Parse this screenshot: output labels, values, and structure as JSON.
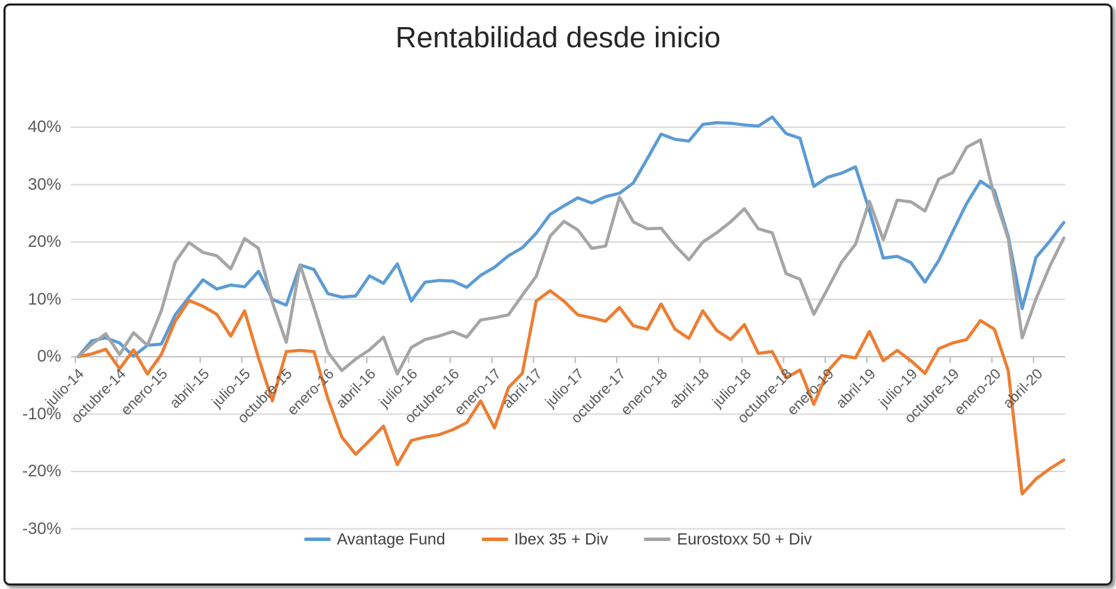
{
  "title": "Rentabilidad desde inicio",
  "colors": {
    "avantage": "#5B9BD5",
    "ibex": "#ED7D31",
    "eurostoxx": "#A5A5A5",
    "gridline": "#D9D9D9",
    "axis_line": "#C6C6C6",
    "tick_mark": "#BFBFBF",
    "axis_text": "#595959",
    "title_text": "#262626"
  },
  "y_axis": {
    "tick_labels": [
      "40%",
      "30%",
      "20%",
      "10%",
      "0%",
      "-10%",
      "-20%",
      "-30%"
    ],
    "tick_values": [
      40,
      30,
      20,
      10,
      0,
      -10,
      -20,
      -30
    ]
  },
  "x_axis": {
    "tick_labels": [
      "julio-14",
      "octubre-14",
      "enero-15",
      "abril-15",
      "julio-15",
      "octubre-15",
      "enero-16",
      "abril-16",
      "julio-16",
      "octubre-16",
      "enero-17",
      "abril-17",
      "julio-17",
      "octubre-17",
      "enero-18",
      "abril-18",
      "julio-18",
      "octubre-18",
      "enero-19",
      "abril-19",
      "julio-19",
      "octubre-19",
      "enero-20",
      "abril-20"
    ]
  },
  "legend": [
    {
      "label": "Avantage Fund",
      "color": "#5B9BD5"
    },
    {
      "label": "Ibex 35 + Div",
      "color": "#ED7D31"
    },
    {
      "label": "Eurostoxx 50 + Div",
      "color": "#A5A5A5"
    }
  ],
  "chart_data": {
    "type": "line",
    "title": "Rentabilidad desde inicio",
    "xlabel": "",
    "ylabel": "",
    "ylim": [
      -33,
      46
    ],
    "grid": "horizontal",
    "legend_position": "bottom",
    "x_unit": "month",
    "x": [
      "2014-07",
      "2014-08",
      "2014-09",
      "2014-10",
      "2014-11",
      "2014-12",
      "2015-01",
      "2015-02",
      "2015-03",
      "2015-04",
      "2015-05",
      "2015-06",
      "2015-07",
      "2015-08",
      "2015-09",
      "2015-10",
      "2015-11",
      "2015-12",
      "2016-01",
      "2016-02",
      "2016-03",
      "2016-04",
      "2016-05",
      "2016-06",
      "2016-07",
      "2016-08",
      "2016-09",
      "2016-10",
      "2016-11",
      "2016-12",
      "2017-01",
      "2017-02",
      "2017-03",
      "2017-04",
      "2017-05",
      "2017-06",
      "2017-07",
      "2017-08",
      "2017-09",
      "2017-10",
      "2017-11",
      "2017-12",
      "2018-01",
      "2018-02",
      "2018-03",
      "2018-04",
      "2018-05",
      "2018-06",
      "2018-07",
      "2018-08",
      "2018-09",
      "2018-10",
      "2018-11",
      "2018-12",
      "2019-01",
      "2019-02",
      "2019-03",
      "2019-04",
      "2019-05",
      "2019-06",
      "2019-07",
      "2019-08",
      "2019-09",
      "2019-10",
      "2019-11",
      "2019-12",
      "2020-01",
      "2020-02",
      "2020-03",
      "2020-04",
      "2020-05",
      "2020-06"
    ],
    "series": [
      {
        "name": "Avantage Fund",
        "color": "#5B9BD5",
        "values": [
          0.0,
          2.8,
          3.3,
          2.4,
          0.1,
          2.0,
          2.2,
          7.3,
          10.4,
          13.4,
          11.8,
          12.5,
          12.2,
          14.9,
          10.0,
          9.0,
          16.0,
          15.2,
          11.0,
          10.4,
          10.6,
          14.1,
          12.8,
          16.2,
          9.7,
          13.0,
          13.3,
          13.2,
          12.1,
          14.2,
          15.6,
          17.6,
          19.0,
          21.5,
          24.8,
          26.3,
          27.7,
          26.8,
          27.9,
          28.5,
          30.3,
          34.5,
          38.8,
          37.9,
          37.6,
          40.5,
          40.8,
          40.7,
          40.4,
          40.2,
          41.8,
          38.9,
          38.1,
          29.7,
          31.3,
          32.0,
          33.1,
          25.5,
          17.2,
          17.5,
          16.4,
          13.0,
          16.8,
          21.8,
          26.7,
          30.6,
          29.0,
          21.0,
          8.4,
          17.3,
          20.2,
          23.4
        ]
      },
      {
        "name": "Ibex 35 + Div",
        "color": "#ED7D31",
        "values": [
          0.0,
          0.5,
          1.3,
          -2.1,
          1.2,
          -3.0,
          0.4,
          6.2,
          9.8,
          8.8,
          7.4,
          3.6,
          8.0,
          -0.2,
          -7.7,
          0.9,
          1.1,
          0.9,
          -7.3,
          -14.0,
          -17.0,
          -14.6,
          -12.1,
          -18.8,
          -14.6,
          -14.0,
          -13.6,
          -12.7,
          -11.5,
          -7.7,
          -12.4,
          -5.4,
          -2.9,
          9.7,
          11.5,
          9.7,
          7.3,
          6.8,
          6.2,
          8.6,
          5.4,
          4.8,
          9.2,
          4.8,
          3.2,
          8.0,
          4.6,
          3.0,
          5.6,
          0.6,
          0.9,
          -3.7,
          -2.3,
          -8.3,
          -2.5,
          0.2,
          -0.2,
          4.4,
          -0.7,
          1.1,
          -0.7,
          -2.9,
          1.4,
          2.4,
          3.0,
          6.3,
          4.8,
          -2.4,
          -23.9,
          -21.3,
          -19.5,
          -18.0
        ]
      },
      {
        "name": "Eurostoxx 50 + Div",
        "color": "#A5A5A5",
        "values": [
          0.0,
          2.2,
          4.0,
          0.4,
          4.2,
          2.0,
          8.0,
          16.5,
          19.9,
          18.2,
          17.6,
          15.3,
          20.6,
          18.9,
          9.5,
          2.5,
          16.0,
          8.6,
          0.8,
          -2.4,
          -0.4,
          1.2,
          3.4,
          -3.0,
          1.6,
          3.0,
          3.6,
          4.4,
          3.4,
          6.4,
          6.8,
          7.3,
          10.7,
          14.0,
          21.0,
          23.6,
          22.1,
          18.9,
          19.3,
          27.8,
          23.5,
          22.3,
          22.4,
          19.4,
          16.9,
          20.0,
          21.6,
          23.5,
          25.8,
          22.3,
          21.6,
          14.5,
          13.5,
          7.4,
          11.9,
          16.5,
          19.6,
          27.1,
          20.4,
          27.3,
          27.0,
          25.4,
          31.0,
          32.1,
          36.5,
          37.8,
          27.9,
          20.6,
          3.3,
          10.1,
          15.8,
          20.7
        ]
      }
    ]
  }
}
